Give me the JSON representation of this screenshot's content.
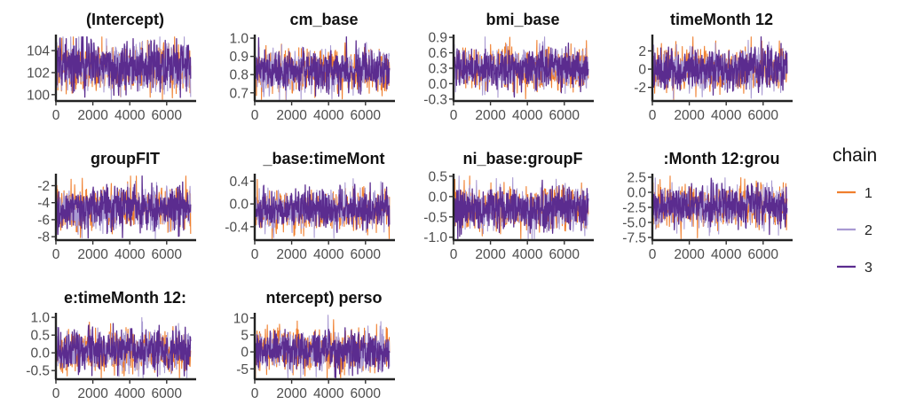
{
  "chart_data": {
    "type": "line",
    "description_series_note": "MCMC trace plots, three chains overlaid per parameter",
    "x_ticks": [
      0,
      2000,
      4000,
      6000
    ],
    "x_tick_labels": [
      "0",
      "2000",
      "4000",
      "6000"
    ],
    "x_range": [
      0,
      7500
    ],
    "legend": {
      "title": "chain",
      "placement": "right",
      "entries": [
        {
          "label": "1",
          "color": "#f07f2e"
        },
        {
          "label": "2",
          "color": "#a99ad2"
        },
        {
          "label": "3",
          "color": "#5b2c8f"
        }
      ]
    },
    "panels": [
      {
        "title": "(Intercept)",
        "ylim": [
          99.5,
          105.3
        ],
        "center": 102.5,
        "spread": 1.15,
        "y_ticks": [
          100,
          102,
          104
        ],
        "y_tick_labels": [
          "100",
          "102",
          "104"
        ]
      },
      {
        "title": "cm_base",
        "ylim": [
          0.66,
          1.01
        ],
        "center": 0.82,
        "spread": 0.06,
        "y_ticks": [
          0.7,
          0.8,
          0.9,
          1.0
        ],
        "y_tick_labels": [
          "0.7",
          "0.8",
          "0.9",
          "1.0"
        ]
      },
      {
        "title": "bmi_base",
        "ylim": [
          -0.32,
          0.92
        ],
        "center": 0.3,
        "spread": 0.2,
        "y_ticks": [
          -0.3,
          0.0,
          0.3,
          0.6,
          0.9
        ],
        "y_tick_labels": [
          "-0.3",
          "0.0",
          "0.3",
          "0.6",
          "0.9"
        ]
      },
      {
        "title": "timeMonth 12",
        "ylim": [
          -3.4,
          3.6
        ],
        "center": 0.0,
        "spread": 1.2,
        "y_ticks": [
          -2,
          0,
          2
        ],
        "y_tick_labels": [
          "-2",
          "0",
          "2"
        ]
      },
      {
        "title": "groupFIT",
        "ylim": [
          -8.3,
          -0.8
        ],
        "center": -4.6,
        "spread": 1.25,
        "y_ticks": [
          -8,
          -6,
          -4,
          -2
        ],
        "y_tick_labels": [
          "-8",
          "-6",
          "-4",
          "-2"
        ]
      },
      {
        "title": "_base:timeMont",
        "ylim": [
          -0.62,
          0.5
        ],
        "center": -0.1,
        "spread": 0.18,
        "y_ticks": [
          -0.4,
          0.0,
          0.4
        ],
        "y_tick_labels": [
          "-0.4",
          "0.0",
          "0.4"
        ]
      },
      {
        "title": "ni_base:groupF",
        "ylim": [
          -1.05,
          0.52
        ],
        "center": -0.3,
        "spread": 0.27,
        "y_ticks": [
          -1.0,
          -0.5,
          0.0,
          0.5
        ],
        "y_tick_labels": [
          "-1.0",
          "-0.5",
          "0.0",
          "0.5"
        ]
      },
      {
        "title": ":Month 12:grou",
        "ylim": [
          -7.8,
          2.8
        ],
        "center": -2.3,
        "spread": 1.7,
        "y_ticks": [
          -7.5,
          -5.0,
          -2.5,
          0.0,
          2.5
        ],
        "y_tick_labels": [
          "-7.5",
          "-5.0",
          "-2.5",
          "0.0",
          "2.5"
        ]
      },
      {
        "title": "e:timeMonth 12:",
        "ylim": [
          -0.72,
          1.08
        ],
        "center": 0.05,
        "spread": 0.3,
        "y_ticks": [
          -0.5,
          0.0,
          0.5,
          1.0
        ],
        "y_tick_labels": [
          "-0.5",
          "0.0",
          "0.5",
          "1.0"
        ]
      },
      {
        "title": "ntercept) perso",
        "ylim": [
          -7.8,
          11
        ],
        "center": 0.5,
        "spread": 3.0,
        "y_ticks": [
          -5,
          0,
          5,
          10
        ],
        "y_tick_labels": [
          "-5",
          "0",
          "5",
          "10"
        ]
      }
    ]
  }
}
